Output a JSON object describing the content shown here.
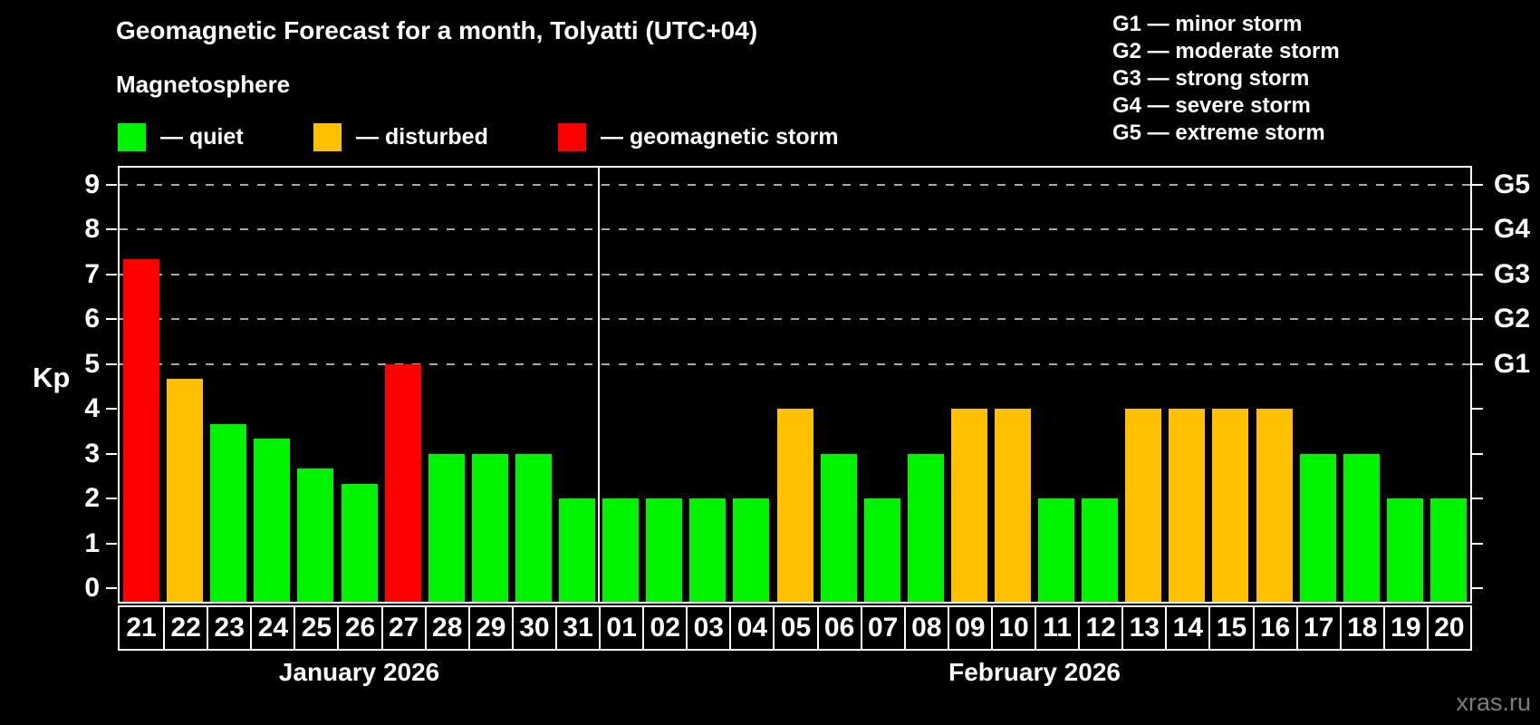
{
  "title": "Geomagnetic Forecast for a month, Tolyatti (UTC+04)",
  "subtitle": "Magnetosphere",
  "colors": {
    "quiet": "#00f400",
    "disturbed": "#ffc000",
    "storm": "#ff0000",
    "frame": "#ffffff",
    "grid": "#a8a8a8",
    "background": "#000000",
    "watermark": "#7d7d7d"
  },
  "legend": {
    "items": [
      {
        "key": "quiet",
        "label": "— quiet"
      },
      {
        "key": "disturbed",
        "label": "— disturbed"
      },
      {
        "key": "storm",
        "label": "— geomagnetic storm"
      }
    ]
  },
  "g_legend": [
    "G1 — minor storm",
    "G2 — moderate storm",
    "G3 — strong storm",
    "G4 — severe storm",
    "G5 — extreme storm"
  ],
  "watermark": "xras.ru",
  "chart_data": {
    "type": "bar",
    "title": "Geomagnetic Forecast for a month, Tolyatti (UTC+04)",
    "xlabel": "",
    "ylabel": "Kp",
    "ylim": [
      0,
      9
    ],
    "y_ticks": [
      0,
      1,
      2,
      3,
      4,
      5,
      6,
      7,
      8,
      9
    ],
    "grid_levels": [
      5,
      6,
      7,
      8,
      9
    ],
    "grid_style": "dashed horizontal lines at Kp 5–9 (G1–G5), gray on black",
    "right_axis": [
      {
        "kp": 5,
        "label": "G1"
      },
      {
        "kp": 6,
        "label": "G2"
      },
      {
        "kp": 7,
        "label": "G3"
      },
      {
        "kp": 8,
        "label": "G4"
      },
      {
        "kp": 9,
        "label": "G5"
      }
    ],
    "months": [
      {
        "label": "January 2026",
        "days": 11
      },
      {
        "label": "February 2026",
        "days": 20
      }
    ],
    "categories": [
      "21",
      "22",
      "23",
      "24",
      "25",
      "26",
      "27",
      "28",
      "29",
      "30",
      "31",
      "01",
      "02",
      "03",
      "04",
      "05",
      "06",
      "07",
      "08",
      "09",
      "10",
      "11",
      "12",
      "13",
      "14",
      "15",
      "16",
      "17",
      "18",
      "19",
      "20"
    ],
    "bars": [
      {
        "day": "21",
        "value": 7.33,
        "status": "storm"
      },
      {
        "day": "22",
        "value": 4.67,
        "status": "disturbed"
      },
      {
        "day": "23",
        "value": 3.67,
        "status": "quiet"
      },
      {
        "day": "24",
        "value": 3.33,
        "status": "quiet"
      },
      {
        "day": "25",
        "value": 2.67,
        "status": "quiet"
      },
      {
        "day": "26",
        "value": 2.33,
        "status": "quiet"
      },
      {
        "day": "27",
        "value": 5,
        "status": "storm"
      },
      {
        "day": "28",
        "value": 3,
        "status": "quiet"
      },
      {
        "day": "29",
        "value": 3,
        "status": "quiet"
      },
      {
        "day": "30",
        "value": 3,
        "status": "quiet"
      },
      {
        "day": "31",
        "value": 2,
        "status": "quiet"
      },
      {
        "day": "01",
        "value": 2,
        "status": "quiet"
      },
      {
        "day": "02",
        "value": 2,
        "status": "quiet"
      },
      {
        "day": "03",
        "value": 2,
        "status": "quiet"
      },
      {
        "day": "04",
        "value": 2,
        "status": "quiet"
      },
      {
        "day": "05",
        "value": 4,
        "status": "disturbed"
      },
      {
        "day": "06",
        "value": 3,
        "status": "quiet"
      },
      {
        "day": "07",
        "value": 2,
        "status": "quiet"
      },
      {
        "day": "08",
        "value": 3,
        "status": "quiet"
      },
      {
        "day": "09",
        "value": 4,
        "status": "disturbed"
      },
      {
        "day": "10",
        "value": 4,
        "status": "disturbed"
      },
      {
        "day": "11",
        "value": 2,
        "status": "quiet"
      },
      {
        "day": "12",
        "value": 2,
        "status": "quiet"
      },
      {
        "day": "13",
        "value": 4,
        "status": "disturbed"
      },
      {
        "day": "14",
        "value": 4,
        "status": "disturbed"
      },
      {
        "day": "15",
        "value": 4,
        "status": "disturbed"
      },
      {
        "day": "16",
        "value": 4,
        "status": "disturbed"
      },
      {
        "day": "17",
        "value": 3,
        "status": "quiet"
      },
      {
        "day": "18",
        "value": 3,
        "status": "quiet"
      },
      {
        "day": "19",
        "value": 2,
        "status": "quiet"
      },
      {
        "day": "20",
        "value": 2,
        "status": "quiet"
      }
    ]
  }
}
